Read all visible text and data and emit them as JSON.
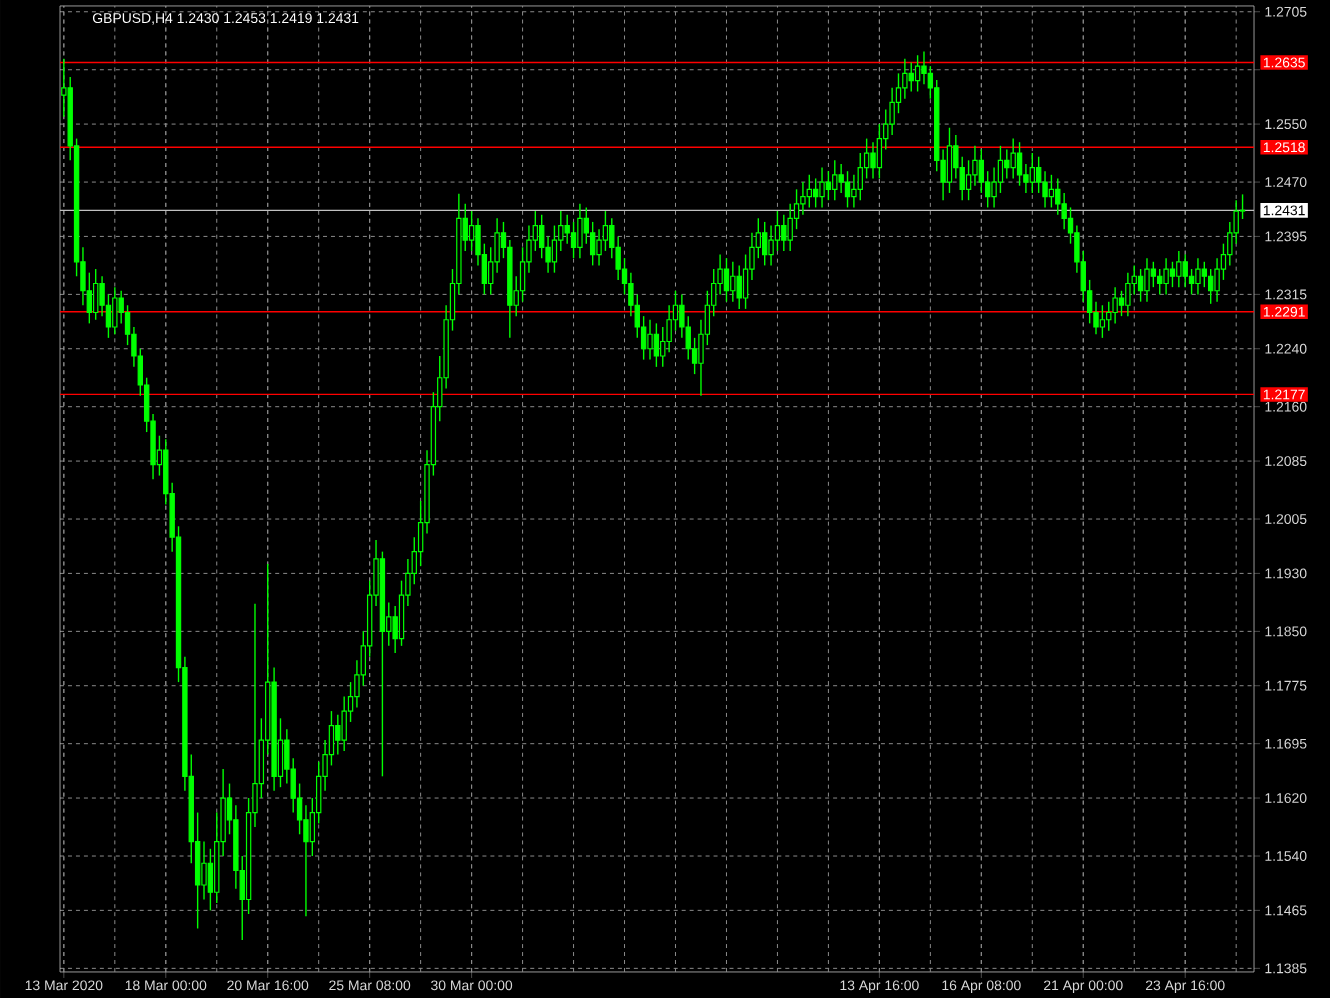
{
  "chart_data": {
    "type": "candlestick",
    "title": "GBPUSD,H4  1.2430 1.2453 1.2419 1.2431",
    "color": "#00ff00",
    "grid": true,
    "categories": [
      "13 Mar 2020",
      null,
      null,
      null,
      null,
      null,
      null,
      null,
      null,
      null,
      null,
      null,
      null,
      null,
      null,
      null,
      "18 Mar 00:00",
      null,
      null,
      null,
      null,
      null,
      null,
      null,
      null,
      null,
      null,
      null,
      null,
      null,
      null,
      null,
      "20 Mar 16:00",
      null,
      null,
      null,
      null,
      null,
      null,
      null,
      null,
      null,
      null,
      null,
      null,
      null,
      null,
      null,
      "25 Mar 08:00",
      null,
      null,
      null,
      null,
      null,
      null,
      null,
      null,
      null,
      null,
      null,
      null,
      null,
      null,
      null,
      "30 Mar 00:00",
      null,
      null,
      null,
      null,
      null,
      null,
      null,
      null,
      null,
      null,
      null,
      null,
      null,
      null,
      null,
      null,
      null,
      null,
      null,
      null,
      null,
      null,
      null,
      null,
      null,
      null,
      null,
      null,
      null,
      null,
      null,
      null,
      null,
      null,
      null,
      null,
      null,
      null,
      null,
      null,
      null,
      null,
      null,
      null,
      null,
      null,
      null,
      null,
      null,
      null,
      null,
      null,
      null,
      null,
      null,
      null,
      null,
      null,
      null,
      null,
      null,
      null,
      null,
      "13 Apr 16:00",
      null,
      null,
      null,
      null,
      null,
      null,
      null,
      null,
      null,
      null,
      null,
      null,
      null,
      null,
      null,
      "16 Apr 08:00",
      null,
      null,
      null,
      null,
      null,
      null,
      null,
      null,
      null,
      null,
      null,
      null,
      null,
      null,
      null,
      "21 Apr 00:00",
      null,
      null,
      null,
      null,
      null,
      null,
      null,
      null,
      null,
      null,
      null,
      null,
      null,
      null,
      null,
      "23 Apr 16:00",
      null,
      null,
      null,
      null,
      null,
      null,
      null,
      null,
      null
    ],
    "ylim": [
      1.138,
      1.2713
    ],
    "yticks": [
      1.2705,
      {
        "value": 1.2625,
        "label": null
      },
      {
        "value": 1.255,
        "label": "1.2550"
      },
      {
        "value": 1.247,
        "label": "1.2470"
      },
      1.2395,
      1.2315,
      {
        "value": 1.224,
        "label": "1.2240"
      },
      {
        "value": 1.216,
        "label": "1.2160"
      },
      1.2085,
      1.2005,
      {
        "value": 1.193,
        "label": "1.1930"
      },
      {
        "value": 1.185,
        "label": "1.1850"
      },
      1.1775,
      1.1695,
      {
        "value": 1.162,
        "label": "1.1620"
      },
      {
        "value": 1.154,
        "label": "1.1540"
      },
      1.1465,
      1.1385
    ],
    "ref_lines": [
      {
        "axis": "y",
        "value": 1.2635,
        "label": "1.2635",
        "color": "#ff0000"
      },
      {
        "axis": "y",
        "value": 1.2518,
        "label": "1.2518",
        "color": "#ff0000"
      },
      {
        "axis": "y",
        "value": 1.2431,
        "label": "1.2431",
        "color": "#c0c0c0"
      },
      {
        "axis": "y",
        "value": 1.2291,
        "label": "1.2291",
        "color": "#ff0000"
      },
      {
        "axis": "y",
        "value": 1.2177,
        "label": "1.2177",
        "color": "#ff0000"
      }
    ],
    "ohlc": [
      [
        1.259,
        1.264,
        1.256,
        1.26
      ],
      [
        1.26,
        1.2615,
        1.25,
        1.252
      ],
      [
        1.252,
        1.253,
        1.234,
        1.236
      ],
      [
        1.236,
        1.238,
        1.23,
        1.232
      ],
      [
        1.232,
        1.2345,
        1.2275,
        1.229
      ],
      [
        1.229,
        1.235,
        1.228,
        1.233
      ],
      [
        1.233,
        1.234,
        1.2285,
        1.23
      ],
      [
        1.23,
        1.2315,
        1.2255,
        1.227
      ],
      [
        1.227,
        1.2325,
        1.226,
        1.231
      ],
      [
        1.231,
        1.232,
        1.2275,
        1.229
      ],
      [
        1.229,
        1.23,
        1.2245,
        1.226
      ],
      [
        1.226,
        1.227,
        1.2215,
        1.223
      ],
      [
        1.223,
        1.224,
        1.2175,
        1.219
      ],
      [
        1.219,
        1.22,
        1.2125,
        1.214
      ],
      [
        1.214,
        1.215,
        1.206,
        1.208
      ],
      [
        1.208,
        1.212,
        1.2065,
        1.21
      ],
      [
        1.21,
        1.2115,
        1.2025,
        1.204
      ],
      [
        1.204,
        1.2055,
        1.196,
        1.198
      ],
      [
        1.198,
        1.1995,
        1.178,
        1.18
      ],
      [
        1.18,
        1.1815,
        1.163,
        1.165
      ],
      [
        1.165,
        1.168,
        1.153,
        1.156
      ],
      [
        1.156,
        1.16,
        1.144,
        1.15
      ],
      [
        1.15,
        1.156,
        1.148,
        1.153
      ],
      [
        1.153,
        1.155,
        1.1465,
        1.149
      ],
      [
        1.149,
        1.16,
        1.1475,
        1.156
      ],
      [
        1.156,
        1.166,
        1.154,
        1.162
      ],
      [
        1.162,
        1.164,
        1.157,
        1.159
      ],
      [
        1.159,
        1.161,
        1.1495,
        1.152
      ],
      [
        1.152,
        1.154,
        1.1424,
        1.148
      ],
      [
        1.148,
        1.162,
        1.146,
        1.16
      ],
      [
        1.16,
        1.1888,
        1.158,
        1.164
      ],
      [
        1.164,
        1.173,
        1.162,
        1.17
      ],
      [
        1.17,
        1.1943,
        1.168,
        1.178
      ],
      [
        1.178,
        1.18,
        1.163,
        1.165
      ],
      [
        1.165,
        1.173,
        1.1635,
        1.17
      ],
      [
        1.17,
        1.1715,
        1.164,
        1.166
      ],
      [
        1.166,
        1.1675,
        1.16,
        1.162
      ],
      [
        1.162,
        1.164,
        1.157,
        1.159
      ],
      [
        1.159,
        1.161,
        1.1457,
        1.156
      ],
      [
        1.156,
        1.162,
        1.154,
        1.16
      ],
      [
        1.16,
        1.167,
        1.1585,
        1.165
      ],
      [
        1.165,
        1.17,
        1.163,
        1.168
      ],
      [
        1.168,
        1.174,
        1.1665,
        1.172
      ],
      [
        1.172,
        1.1735,
        1.168,
        1.17
      ],
      [
        1.17,
        1.176,
        1.1685,
        1.174
      ],
      [
        1.174,
        1.178,
        1.1725,
        1.176
      ],
      [
        1.176,
        1.181,
        1.1745,
        1.179
      ],
      [
        1.179,
        1.185,
        1.1775,
        1.183
      ],
      [
        1.183,
        1.192,
        1.1815,
        1.19
      ],
      [
        1.19,
        1.1976,
        1.1885,
        1.195
      ],
      [
        1.195,
        1.196,
        1.165,
        1.185
      ],
      [
        1.185,
        1.189,
        1.183,
        1.187
      ],
      [
        1.187,
        1.1885,
        1.182,
        1.184
      ],
      [
        1.184,
        1.192,
        1.183,
        1.19
      ],
      [
        1.19,
        1.195,
        1.1885,
        1.193
      ],
      [
        1.193,
        1.198,
        1.1915,
        1.196
      ],
      [
        1.196,
        1.203,
        1.194,
        1.2
      ],
      [
        1.2,
        1.21,
        1.1985,
        1.208
      ],
      [
        1.208,
        1.218,
        1.2065,
        1.216
      ],
      [
        1.216,
        1.223,
        1.214,
        1.22
      ],
      [
        1.22,
        1.23,
        1.2185,
        1.228
      ],
      [
        1.228,
        1.235,
        1.2265,
        1.233
      ],
      [
        1.233,
        1.2454,
        1.2315,
        1.242
      ],
      [
        1.242,
        1.244,
        1.2375,
        1.239
      ],
      [
        1.239,
        1.243,
        1.2375,
        1.241
      ],
      [
        1.241,
        1.242,
        1.2355,
        1.237
      ],
      [
        1.237,
        1.2385,
        1.2315,
        1.233
      ],
      [
        1.233,
        1.238,
        1.2315,
        1.236
      ],
      [
        1.236,
        1.242,
        1.2345,
        1.24
      ],
      [
        1.24,
        1.2415,
        1.2365,
        1.238
      ],
      [
        1.238,
        1.239,
        1.2255,
        1.23
      ],
      [
        1.23,
        1.234,
        1.2285,
        1.232
      ],
      [
        1.232,
        1.238,
        1.2305,
        1.236
      ],
      [
        1.236,
        1.241,
        1.2345,
        1.239
      ],
      [
        1.239,
        1.243,
        1.2375,
        1.241
      ],
      [
        1.241,
        1.2425,
        1.2365,
        1.238
      ],
      [
        1.238,
        1.2395,
        1.2345,
        1.236
      ],
      [
        1.236,
        1.241,
        1.2345,
        1.239
      ],
      [
        1.239,
        1.243,
        1.2375,
        1.241
      ],
      [
        1.241,
        1.2425,
        1.2385,
        1.24
      ],
      [
        1.24,
        1.2415,
        1.2365,
        1.238
      ],
      [
        1.238,
        1.244,
        1.2365,
        1.242
      ],
      [
        1.242,
        1.2435,
        1.2385,
        1.24
      ],
      [
        1.24,
        1.2415,
        1.2355,
        1.237
      ],
      [
        1.237,
        1.2405,
        1.2355,
        1.239
      ],
      [
        1.239,
        1.243,
        1.2375,
        1.241
      ],
      [
        1.241,
        1.242,
        1.2365,
        1.238
      ],
      [
        1.238,
        1.2395,
        1.2335,
        1.235
      ],
      [
        1.235,
        1.2365,
        1.2315,
        1.233
      ],
      [
        1.233,
        1.2345,
        1.2285,
        1.23
      ],
      [
        1.23,
        1.2315,
        1.2255,
        1.227
      ],
      [
        1.227,
        1.2285,
        1.2225,
        1.224
      ],
      [
        1.224,
        1.228,
        1.2225,
        1.226
      ],
      [
        1.226,
        1.2275,
        1.2215,
        1.223
      ],
      [
        1.223,
        1.227,
        1.2215,
        1.225
      ],
      [
        1.225,
        1.23,
        1.2235,
        1.228
      ],
      [
        1.228,
        1.232,
        1.2265,
        1.23
      ],
      [
        1.23,
        1.2315,
        1.2255,
        1.227
      ],
      [
        1.227,
        1.2285,
        1.2225,
        1.224
      ],
      [
        1.224,
        1.2255,
        1.2205,
        1.222
      ],
      [
        1.222,
        1.228,
        1.2175,
        1.226
      ],
      [
        1.226,
        1.232,
        1.2245,
        1.23
      ],
      [
        1.23,
        1.235,
        1.2285,
        1.233
      ],
      [
        1.233,
        1.237,
        1.2315,
        1.235
      ],
      [
        1.235,
        1.2365,
        1.2305,
        1.232
      ],
      [
        1.232,
        1.236,
        1.2305,
        1.234
      ],
      [
        1.234,
        1.2355,
        1.2295,
        1.231
      ],
      [
        1.231,
        1.237,
        1.2295,
        1.235
      ],
      [
        1.235,
        1.24,
        1.2335,
        1.238
      ],
      [
        1.238,
        1.242,
        1.2365,
        1.24
      ],
      [
        1.24,
        1.2415,
        1.2355,
        1.237
      ],
      [
        1.237,
        1.241,
        1.2355,
        1.239
      ],
      [
        1.239,
        1.243,
        1.2375,
        1.241
      ],
      [
        1.241,
        1.2425,
        1.2375,
        1.239
      ],
      [
        1.239,
        1.244,
        1.2375,
        1.242
      ],
      [
        1.242,
        1.246,
        1.2405,
        1.244
      ],
      [
        1.244,
        1.247,
        1.2425,
        1.245
      ],
      [
        1.245,
        1.248,
        1.2435,
        1.246
      ],
      [
        1.246,
        1.2475,
        1.2435,
        1.245
      ],
      [
        1.245,
        1.249,
        1.2435,
        1.247
      ],
      [
        1.247,
        1.2485,
        1.2445,
        1.246
      ],
      [
        1.246,
        1.25,
        1.2445,
        1.248
      ],
      [
        1.248,
        1.2495,
        1.2455,
        1.247
      ],
      [
        1.247,
        1.2485,
        1.2435,
        1.245
      ],
      [
        1.245,
        1.248,
        1.2435,
        1.246
      ],
      [
        1.246,
        1.251,
        1.2445,
        1.249
      ],
      [
        1.249,
        1.253,
        1.2475,
        1.251
      ],
      [
        1.251,
        1.2525,
        1.2475,
        1.249
      ],
      [
        1.249,
        1.255,
        1.2475,
        1.253
      ],
      [
        1.253,
        1.257,
        1.2515,
        1.255
      ],
      [
        1.255,
        1.26,
        1.2535,
        1.258
      ],
      [
        1.258,
        1.262,
        1.2565,
        1.26
      ],
      [
        1.26,
        1.264,
        1.2585,
        1.262
      ],
      [
        1.262,
        1.2635,
        1.2595,
        1.261
      ],
      [
        1.261,
        1.2645,
        1.2595,
        1.263
      ],
      [
        1.263,
        1.265,
        1.2605,
        1.262
      ],
      [
        1.262,
        1.263,
        1.2585,
        1.26
      ],
      [
        1.26,
        1.2611,
        1.2485,
        1.25
      ],
      [
        1.25,
        1.2515,
        1.2445,
        1.247
      ],
      [
        1.247,
        1.2545,
        1.2455,
        1.252
      ],
      [
        1.252,
        1.2535,
        1.2475,
        1.249
      ],
      [
        1.249,
        1.2505,
        1.2445,
        1.246
      ],
      [
        1.246,
        1.25,
        1.2445,
        1.248
      ],
      [
        1.248,
        1.252,
        1.2465,
        1.25
      ],
      [
        1.25,
        1.2515,
        1.2455,
        1.247
      ],
      [
        1.247,
        1.2485,
        1.2435,
        1.245
      ],
      [
        1.245,
        1.249,
        1.2435,
        1.247
      ],
      [
        1.247,
        1.252,
        1.2455,
        1.25
      ],
      [
        1.25,
        1.2515,
        1.2475,
        1.249
      ],
      [
        1.249,
        1.253,
        1.2475,
        1.251
      ],
      [
        1.251,
        1.2525,
        1.2465,
        1.248
      ],
      [
        1.248,
        1.2495,
        1.2455,
        1.247
      ],
      [
        1.247,
        1.251,
        1.2455,
        1.249
      ],
      [
        1.249,
        1.2505,
        1.2455,
        1.247
      ],
      [
        1.247,
        1.2485,
        1.2435,
        1.245
      ],
      [
        1.245,
        1.248,
        1.2435,
        1.246
      ],
      [
        1.246,
        1.2475,
        1.2425,
        1.244
      ],
      [
        1.244,
        1.2455,
        1.2405,
        1.242
      ],
      [
        1.242,
        1.2435,
        1.2385,
        1.24
      ],
      [
        1.24,
        1.241,
        1.2345,
        1.236
      ],
      [
        1.236,
        1.2375,
        1.2305,
        1.232
      ],
      [
        1.232,
        1.2335,
        1.2275,
        1.229
      ],
      [
        1.229,
        1.2305,
        1.226,
        1.227
      ],
      [
        1.227,
        1.23,
        1.2255,
        1.228
      ],
      [
        1.228,
        1.2305,
        1.2265,
        1.229
      ],
      [
        1.229,
        1.2325,
        1.2275,
        1.231
      ],
      [
        1.231,
        1.232,
        1.2285,
        1.23
      ],
      [
        1.23,
        1.2345,
        1.2285,
        1.233
      ],
      [
        1.233,
        1.2355,
        1.2315,
        1.234
      ],
      [
        1.234,
        1.235,
        1.2305,
        1.232
      ],
      [
        1.232,
        1.2365,
        1.2305,
        1.235
      ],
      [
        1.235,
        1.236,
        1.2325,
        1.234
      ],
      [
        1.234,
        1.235,
        1.2315,
        1.233
      ],
      [
        1.233,
        1.2365,
        1.2315,
        1.235
      ],
      [
        1.235,
        1.236,
        1.2325,
        1.234
      ],
      [
        1.234,
        1.2375,
        1.2325,
        1.236
      ],
      [
        1.236,
        1.237,
        1.2325,
        1.234
      ],
      [
        1.234,
        1.235,
        1.2315,
        1.233
      ],
      [
        1.233,
        1.2365,
        1.2315,
        1.235
      ],
      [
        1.235,
        1.236,
        1.2325,
        1.234
      ],
      [
        1.234,
        1.235,
        1.2302,
        1.232
      ],
      [
        1.232,
        1.2365,
        1.2305,
        1.235
      ],
      [
        1.235,
        1.2385,
        1.2335,
        1.237
      ],
      [
        1.237,
        1.2415,
        1.2355,
        1.24
      ],
      [
        1.24,
        1.2445,
        1.2385,
        1.243
      ],
      [
        1.243,
        1.2453,
        1.2419,
        1.2431
      ]
    ]
  }
}
